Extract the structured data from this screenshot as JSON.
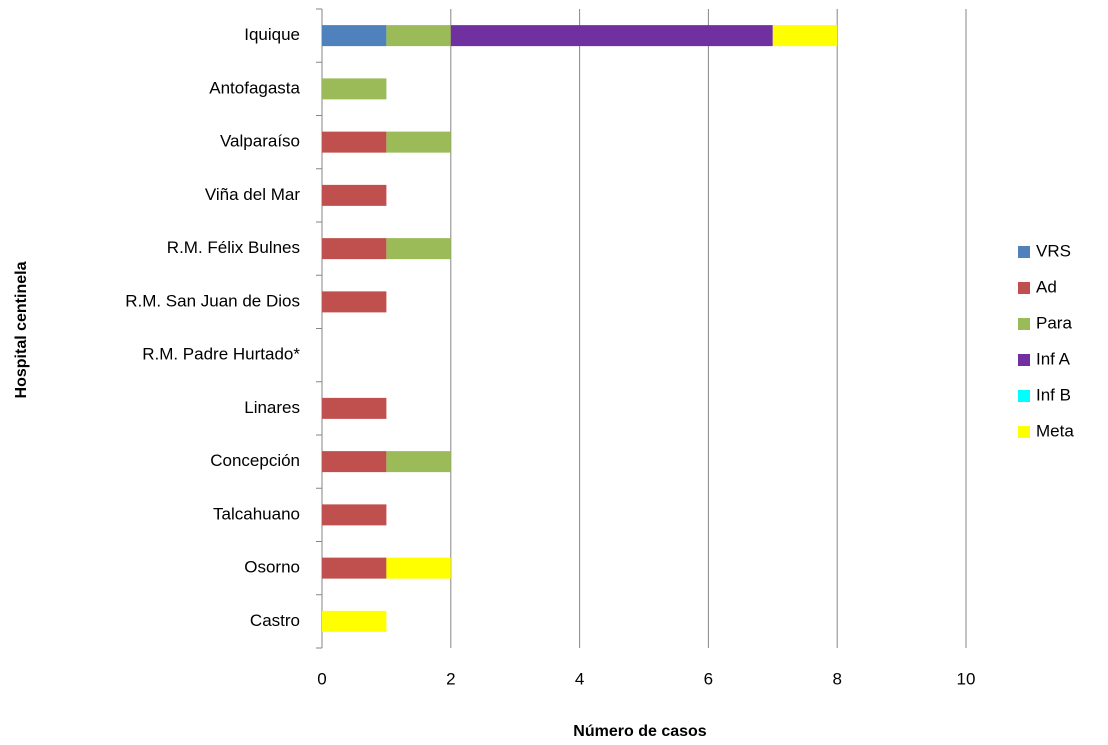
{
  "chart_data": {
    "type": "stacked-bar-horizontal",
    "y_label": "Hospital centinela",
    "x_label": "Número de casos",
    "categories": [
      "Iquique",
      "Antofagasta",
      "Valparaíso",
      "Viña del Mar",
      "R.M. Félix Bulnes",
      "R.M. San Juan de Dios",
      "R.M. Padre Hurtado*",
      "Linares",
      "Concepción",
      "Talcahuano",
      "Osorno",
      "Castro"
    ],
    "series": [
      {
        "name": "VRS",
        "color": "#4f81bd",
        "values": [
          1,
          0,
          0,
          0,
          0,
          0,
          0,
          0,
          0,
          0,
          0,
          0
        ]
      },
      {
        "name": "Ad",
        "color": "#c0504d",
        "values": [
          0,
          0,
          1,
          1,
          1,
          1,
          0,
          1,
          1,
          1,
          1,
          0
        ]
      },
      {
        "name": "Para",
        "color": "#9bbb59",
        "values": [
          1,
          1,
          1,
          0,
          1,
          0,
          0,
          0,
          1,
          0,
          0,
          0
        ]
      },
      {
        "name": "Inf A",
        "color": "#7030a0",
        "values": [
          5,
          0,
          0,
          0,
          0,
          0,
          0,
          0,
          0,
          0,
          0,
          0
        ]
      },
      {
        "name": "Inf B",
        "color": "#00ffff",
        "values": [
          0,
          0,
          0,
          0,
          0,
          0,
          0,
          0,
          0,
          0,
          0,
          0
        ]
      },
      {
        "name": "Meta",
        "color": "#ffff00",
        "values": [
          1,
          0,
          0,
          0,
          0,
          0,
          0,
          0,
          0,
          0,
          1,
          1
        ]
      }
    ],
    "xlim": [
      0,
      10
    ],
    "xticks": [
      0,
      2,
      4,
      6,
      8,
      10
    ],
    "grid": true,
    "legend": "right"
  }
}
